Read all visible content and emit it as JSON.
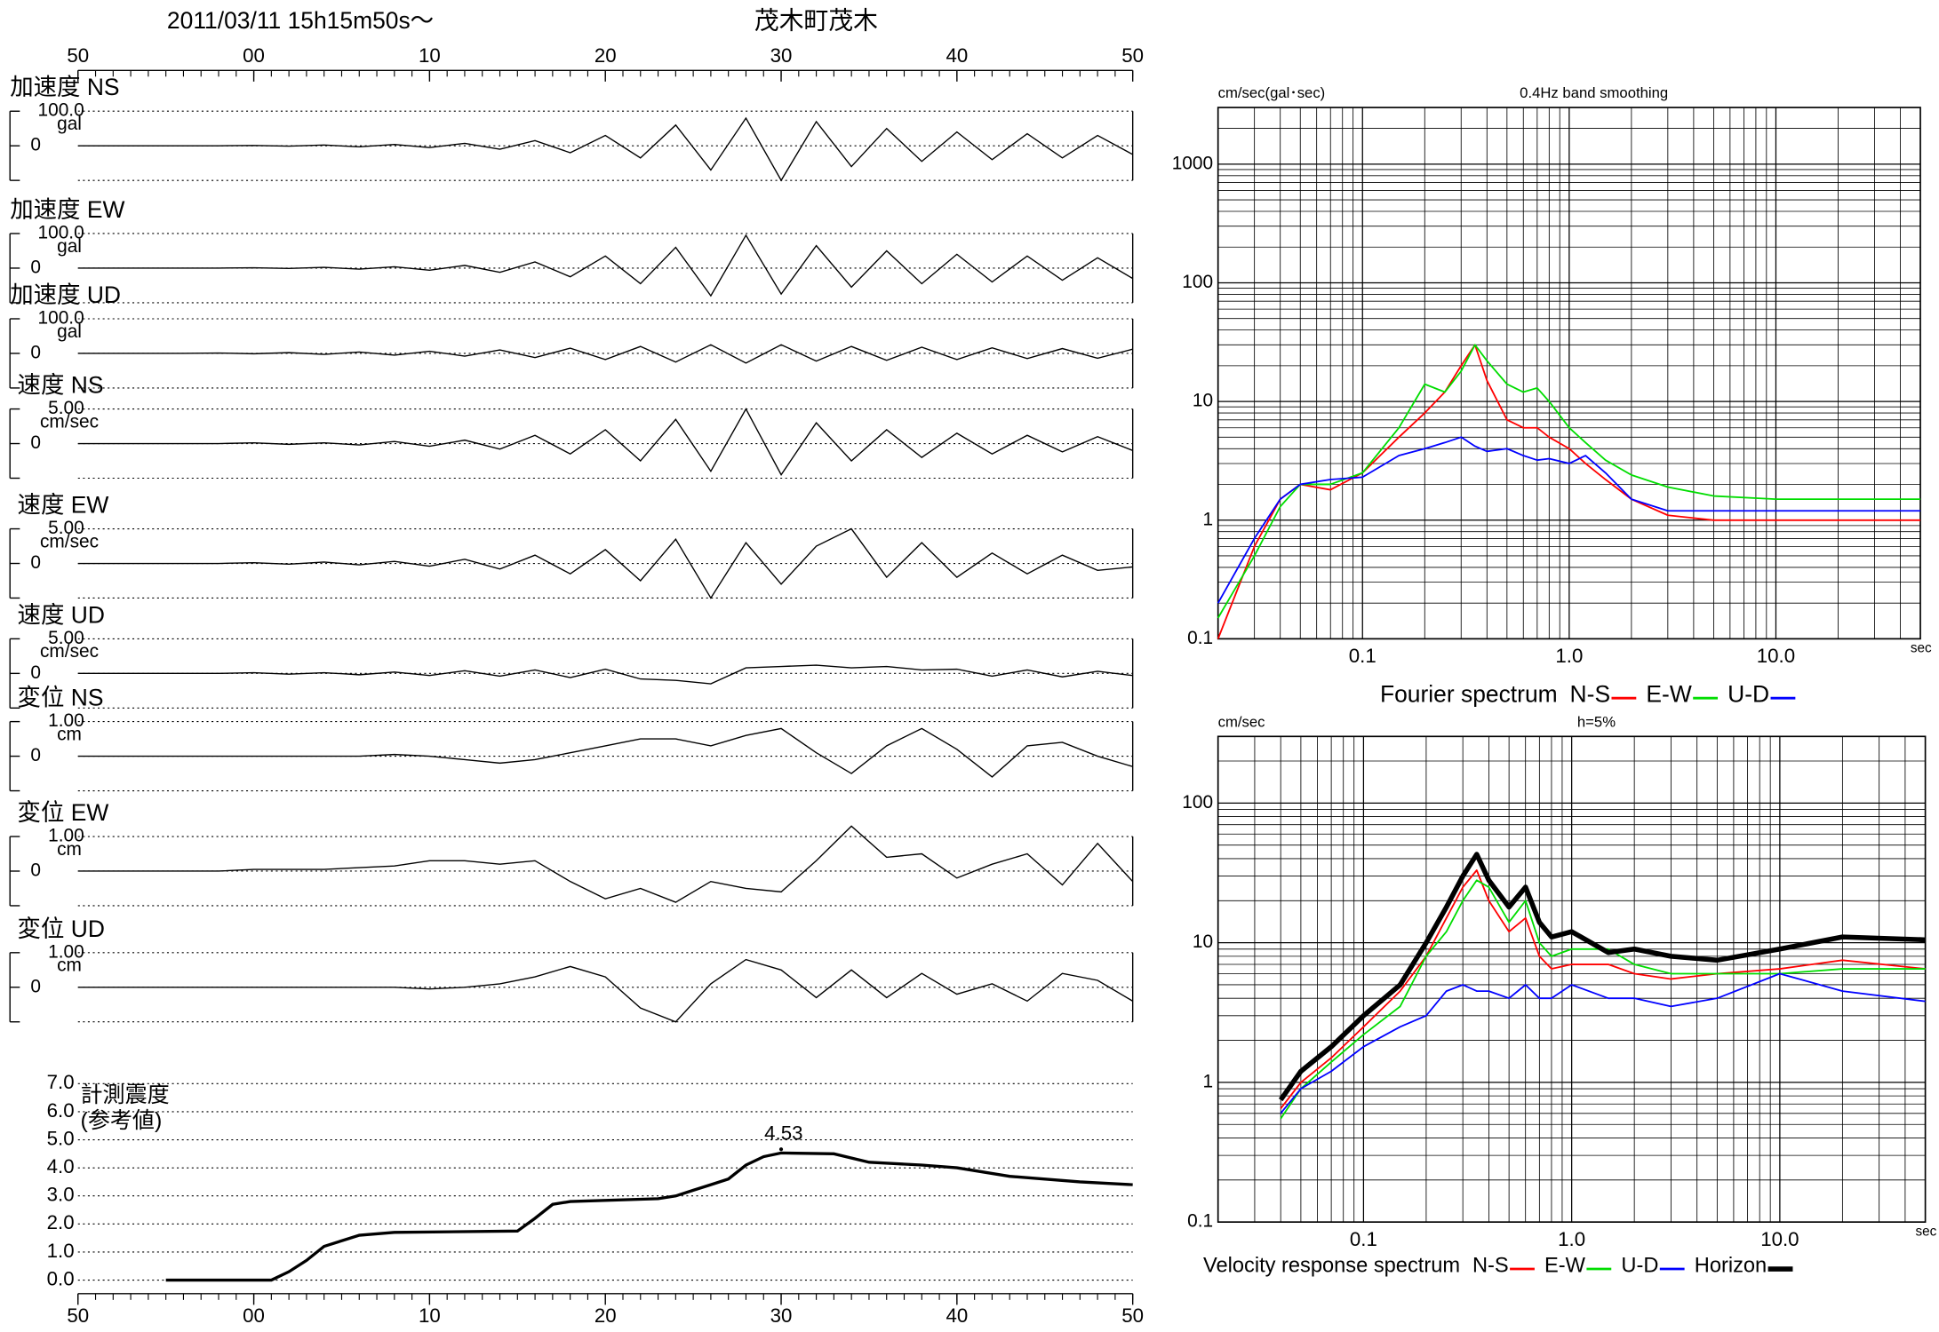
{
  "chart_data": [
    {
      "type": "waveform",
      "title": "2011/03/11  15h15m50s～",
      "station": "茂木町茂木",
      "xlim": [
        0,
        60
      ],
      "xticks": [
        {
          "value": 0,
          "label": "50"
        },
        {
          "value": 10,
          "label": "00"
        },
        {
          "value": 20,
          "label": "10"
        },
        {
          "value": 30,
          "label": "20"
        },
        {
          "value": 40,
          "label": "30"
        },
        {
          "value": 50,
          "label": "40"
        },
        {
          "value": 60,
          "label": "50"
        }
      ],
      "x": [
        0,
        2,
        4,
        6,
        8,
        10,
        12,
        14,
        16,
        18,
        20,
        22,
        24,
        26,
        28,
        30,
        32,
        34,
        36,
        38,
        40,
        42,
        44,
        46,
        48,
        50,
        52,
        54,
        56,
        58,
        60
      ],
      "panels": [
        {
          "name": "加速度 NS",
          "unit": "gal",
          "ylim": [
            -100,
            100
          ],
          "yticks": [
            0,
            {
              "value": 100,
              "label": "100.0"
            }
          ],
          "values": [
            0,
            0,
            0,
            0,
            0,
            1,
            -1,
            2,
            -3,
            4,
            -5,
            7,
            -10,
            15,
            -20,
            30,
            -35,
            60,
            -70,
            80,
            -100,
            70,
            -60,
            50,
            -45,
            40,
            -40,
            35,
            -35,
            30,
            -25
          ]
        },
        {
          "name": "加速度 EW",
          "unit": "gal",
          "ylim": [
            -100,
            100
          ],
          "yticks": [
            0,
            {
              "value": 100,
              "label": "100.0"
            }
          ],
          "values": [
            0,
            0,
            0,
            0,
            0,
            1,
            -1,
            2,
            -3,
            4,
            -6,
            8,
            -12,
            18,
            -25,
            35,
            -45,
            60,
            -80,
            95,
            -75,
            65,
            -55,
            50,
            -45,
            40,
            -40,
            35,
            -35,
            30,
            -30
          ]
        },
        {
          "name": "加速度 UD",
          "unit": "gal",
          "ylim": [
            -100,
            100
          ],
          "yticks": [
            0,
            {
              "value": 100,
              "label": "100.0"
            }
          ],
          "values": [
            0,
            0,
            0,
            0,
            1,
            -1,
            2,
            -3,
            4,
            -5,
            6,
            -8,
            10,
            -12,
            15,
            -18,
            20,
            -25,
            25,
            -28,
            25,
            -22,
            20,
            -20,
            18,
            -18,
            16,
            -15,
            14,
            -14,
            12
          ]
        },
        {
          "name": "速度 NS",
          "unit": "cm/sec",
          "ylim": [
            -5,
            5
          ],
          "yticks": [
            0,
            {
              "value": 5,
              "label": "5.00"
            }
          ],
          "values": [
            0,
            0,
            0,
            0,
            0,
            0.1,
            -0.1,
            0.1,
            -0.2,
            0.3,
            -0.4,
            0.5,
            -0.8,
            1.2,
            -1.5,
            2,
            -2.5,
            3.5,
            -4,
            5,
            -4.5,
            3,
            -2.5,
            2,
            -2,
            1.5,
            -1.5,
            1.2,
            -1.2,
            1,
            -1
          ]
        },
        {
          "name": "速度 EW",
          "unit": "cm/sec",
          "ylim": [
            -5,
            5
          ],
          "yticks": [
            0,
            {
              "value": 5,
              "label": "5.00"
            }
          ],
          "values": [
            0,
            0,
            0,
            0,
            0,
            0.1,
            -0.1,
            0.2,
            -0.2,
            0.3,
            -0.4,
            0.6,
            -0.8,
            1.2,
            -1.5,
            2,
            -2.5,
            3.5,
            -5,
            3,
            -3,
            2.5,
            5,
            -2,
            3,
            -2,
            1.5,
            -1.5,
            1.2,
            -1,
            -0.5
          ]
        },
        {
          "name": "速度 UD",
          "unit": "cm/sec",
          "ylim": [
            -5,
            5
          ],
          "yticks": [
            0,
            {
              "value": 5,
              "label": "5.00"
            }
          ],
          "values": [
            0,
            0,
            0,
            0,
            0,
            0.1,
            -0.1,
            0.1,
            -0.2,
            0.2,
            -0.3,
            0.4,
            -0.4,
            0.5,
            -0.6,
            0.6,
            -0.8,
            -1,
            -1.5,
            0.8,
            1,
            1.2,
            0.8,
            1,
            0.5,
            0.6,
            -0.4,
            0.5,
            -0.5,
            0.3,
            -0.3
          ]
        },
        {
          "name": "変位 NS",
          "unit": "cm",
          "ylim": [
            -1,
            1
          ],
          "yticks": [
            0,
            {
              "value": 1,
              "label": "1.00"
            }
          ],
          "values": [
            0,
            0,
            0,
            0,
            0,
            0,
            0,
            0,
            0,
            0.05,
            0,
            -0.1,
            -0.2,
            -0.1,
            0.1,
            0.3,
            0.5,
            0.5,
            0.3,
            0.6,
            0.8,
            0.1,
            -0.5,
            0.3,
            0.8,
            0.2,
            -0.6,
            0.3,
            0.4,
            0,
            -0.3
          ]
        },
        {
          "name": "変位 EW",
          "unit": "cm",
          "ylim": [
            -1,
            1
          ],
          "yticks": [
            0,
            {
              "value": 1,
              "label": "1.00"
            }
          ],
          "values": [
            0,
            0,
            0,
            0,
            0,
            0.05,
            0.05,
            0.05,
            0.1,
            0.15,
            0.3,
            0.3,
            0.2,
            0.3,
            -0.3,
            -0.8,
            -0.5,
            -0.9,
            -0.3,
            -0.5,
            -0.6,
            0.3,
            1.3,
            0.4,
            0.5,
            -0.2,
            0.2,
            0.5,
            -0.4,
            0.8,
            -0.3
          ]
        },
        {
          "name": "変位 UD",
          "unit": "cm",
          "ylim": [
            -1,
            1
          ],
          "yticks": [
            0,
            {
              "value": 1,
              "label": "1.00"
            }
          ],
          "values": [
            0,
            0,
            0,
            0,
            0,
            0,
            0,
            0,
            0,
            0,
            -0.05,
            0,
            0.1,
            0.3,
            0.6,
            0.3,
            -0.6,
            -1,
            0.1,
            0.8,
            0.5,
            -0.3,
            0.5,
            -0.3,
            0.4,
            -0.2,
            0.1,
            -0.4,
            0.4,
            0.2,
            -0.4
          ]
        }
      ]
    },
    {
      "type": "intensity",
      "title": "計測震度",
      "subtitle": "(参考値)",
      "xlim": [
        0,
        60
      ],
      "xticks": [
        {
          "value": 0,
          "label": "50"
        },
        {
          "value": 10,
          "label": "00"
        },
        {
          "value": 20,
          "label": "10"
        },
        {
          "value": 30,
          "label": "20"
        },
        {
          "value": 40,
          "label": "30"
        },
        {
          "value": 50,
          "label": "40"
        },
        {
          "value": 60,
          "label": "50"
        }
      ],
      "ylim": [
        0,
        7
      ],
      "yticks": [
        {
          "value": 0,
          "label": "0.0"
        },
        {
          "value": 1,
          "label": "1.0"
        },
        {
          "value": 2,
          "label": "2.0"
        },
        {
          "value": 3,
          "label": "3.0"
        },
        {
          "value": 4,
          "label": "4.0"
        },
        {
          "value": 5,
          "label": "5.0"
        },
        {
          "value": 6,
          "label": "6.0"
        },
        {
          "value": 7,
          "label": "7.0"
        }
      ],
      "x": [
        5,
        11,
        12,
        13,
        14,
        16,
        18,
        25,
        26,
        27,
        28,
        33,
        34,
        35,
        36,
        37,
        38,
        39,
        40,
        43,
        45,
        48,
        50,
        53,
        57,
        60
      ],
      "values": [
        0,
        0,
        0.3,
        0.7,
        1.2,
        1.6,
        1.7,
        1.75,
        2.2,
        2.7,
        2.8,
        2.9,
        3.0,
        3.2,
        3.4,
        3.6,
        4.1,
        4.4,
        4.53,
        4.5,
        4.2,
        4.1,
        4.0,
        3.7,
        3.5,
        3.4
      ],
      "labeled_point": 18,
      "color": "#000000",
      "grid": true
    },
    {
      "type": "line",
      "log_x": true,
      "log_y": true,
      "grid": true,
      "title": "0.4Hz band smoothing",
      "y_label": "cm/sec(gal･sec)",
      "x_label": "sec",
      "legend_title": "Fourier spectrum",
      "xlim": [
        0.02,
        50
      ],
      "ylim": [
        0.1,
        3000
      ],
      "xticks": [
        0.1,
        {
          "value": 1,
          "label": "1.0"
        },
        {
          "value": 10,
          "label": "10.0"
        }
      ],
      "yticks": [
        0.1,
        1,
        10,
        100,
        1000
      ],
      "x": [
        0.02,
        0.03,
        0.04,
        0.05,
        0.07,
        0.1,
        0.15,
        0.2,
        0.25,
        0.3,
        0.35,
        0.4,
        0.5,
        0.6,
        0.7,
        0.8,
        1,
        1.2,
        1.5,
        2,
        3,
        5,
        10,
        20,
        50
      ],
      "series": [
        {
          "name": "N-S",
          "color": "#ff0000",
          "line_width": 1.3,
          "values": [
            0.1,
            0.6,
            1.5,
            2,
            1.8,
            2.5,
            5,
            8,
            12,
            20,
            30,
            15,
            7,
            6,
            6,
            5,
            4,
            3,
            2.2,
            1.5,
            1.1,
            1,
            1,
            1,
            1
          ]
        },
        {
          "name": "E-W",
          "color": "#00dd00",
          "line_width": 1.3,
          "values": [
            0.15,
            0.5,
            1.3,
            2,
            2,
            2.5,
            6,
            14,
            12,
            18,
            30,
            22,
            14,
            12,
            13,
            10,
            6,
            4.5,
            3.2,
            2.4,
            1.9,
            1.6,
            1.5,
            1.5,
            1.5
          ]
        },
        {
          "name": "U-D",
          "color": "#0000ff",
          "line_width": 1.3,
          "values": [
            0.2,
            0.7,
            1.5,
            2,
            2.2,
            2.3,
            3.5,
            4,
            4.5,
            5,
            4.2,
            3.8,
            4,
            3.5,
            3.2,
            3.3,
            3,
            3.5,
            2.5,
            1.5,
            1.2,
            1.2,
            1.2,
            1.2,
            1.2
          ]
        }
      ]
    },
    {
      "type": "line",
      "log_x": true,
      "log_y": true,
      "grid": true,
      "title": "h=5%",
      "y_label": "cm/sec",
      "x_label": "sec",
      "legend_title": "Velocity response spectrum",
      "xlim": [
        0.02,
        50
      ],
      "ylim": [
        0.1,
        300
      ],
      "xticks": [
        0.1,
        {
          "value": 1,
          "label": "1.0"
        },
        {
          "value": 10,
          "label": "10.0"
        }
      ],
      "yticks": [
        0.1,
        1,
        10,
        100
      ],
      "x": [
        0.04,
        0.05,
        0.07,
        0.1,
        0.15,
        0.2,
        0.25,
        0.3,
        0.35,
        0.4,
        0.5,
        0.6,
        0.7,
        0.8,
        1,
        1.5,
        2,
        3,
        5,
        10,
        20,
        50
      ],
      "series": [
        {
          "name": "N-S",
          "color": "#ff0000",
          "line_width": 1.3,
          "values": [
            0.65,
            1.0,
            1.5,
            2.5,
            4.5,
            8,
            15,
            25,
            33,
            20,
            12,
            15,
            8,
            6.5,
            7,
            7,
            6,
            5.5,
            6,
            6.5,
            7.5,
            6.5
          ]
        },
        {
          "name": "E-W",
          "color": "#00dd00",
          "line_width": 1.3,
          "values": [
            0.55,
            0.9,
            1.4,
            2.2,
            3.5,
            8,
            12,
            20,
            28,
            25,
            14,
            20,
            10,
            8,
            9,
            9,
            7,
            6,
            6,
            6,
            6.5,
            6.5
          ]
        },
        {
          "name": "U-D",
          "color": "#0000ff",
          "line_width": 1.3,
          "values": [
            0.6,
            0.9,
            1.2,
            1.8,
            2.5,
            3,
            4.5,
            5,
            4.5,
            4.5,
            4,
            5,
            4,
            4,
            5,
            4,
            4,
            3.5,
            4,
            6,
            4.5,
            3.8
          ]
        },
        {
          "name": "Horizon",
          "color": "#000000",
          "line_width": 4,
          "values": [
            0.75,
            1.2,
            1.8,
            3,
            5,
            10,
            18,
            30,
            43,
            28,
            18,
            25,
            14,
            11,
            12,
            8.5,
            9,
            8,
            7.5,
            9,
            11,
            10.5
          ]
        }
      ]
    }
  ]
}
